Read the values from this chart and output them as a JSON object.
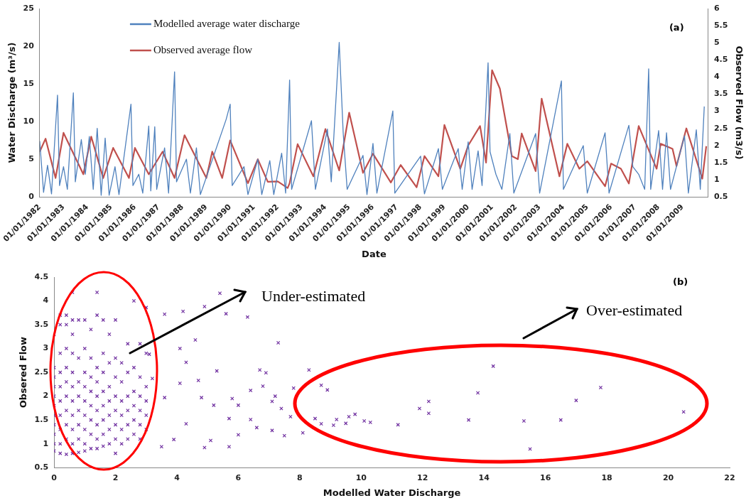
{
  "chart_data": [
    {
      "type": "line",
      "annotations": [
        "(a)"
      ],
      "xlabel": "Date",
      "ylabel": "Water Discharge (m³/s)",
      "y2label": "Observed Flow (m3/s)",
      "xlim": [
        "1982-01",
        "2010-02"
      ],
      "xticks": [
        {
          "value": "1982-01-01",
          "label": "01/01/1982"
        },
        {
          "value": "1983-01-01",
          "label": "01/01/1983"
        },
        {
          "value": "1984-01-01",
          "label": "01/01/1984"
        },
        {
          "value": "1985-01-01",
          "label": "01/01/1985"
        },
        {
          "value": "1986-01-01",
          "label": "01/01/1986"
        },
        {
          "value": "1987-01-01",
          "label": "01/01/1987"
        },
        {
          "value": "1988-01-01",
          "label": "01/01/1988"
        },
        {
          "value": "1989-01-01",
          "label": "01/01/1989"
        },
        {
          "value": "1990-01-01",
          "label": "01/01/1990"
        },
        {
          "value": "1991-01-01",
          "label": "01/01/1991"
        },
        {
          "value": "1992-01-01",
          "label": "01/01/1992"
        },
        {
          "value": "1993-01-01",
          "label": "01/01/1993"
        },
        {
          "value": "1994-01-01",
          "label": "01/01/1994"
        },
        {
          "value": "1995-01-01",
          "label": "01/01/1995"
        },
        {
          "value": "1996-01-01",
          "label": "01/01/1996"
        },
        {
          "value": "1997-01-01",
          "label": "01/01/1997"
        },
        {
          "value": "1998-01-01",
          "label": "01/01/1998"
        },
        {
          "value": "1999-01-01",
          "label": "01/01/1999"
        },
        {
          "value": "2000-01-01",
          "label": "01/01/2000"
        },
        {
          "value": "2001-01-01",
          "label": "01/01/2001"
        },
        {
          "value": "2002-01-01",
          "label": "01/01/2002"
        },
        {
          "value": "2003-01-01",
          "label": "01/01/2003"
        },
        {
          "value": "2004-01-01",
          "label": "01/01/2004"
        },
        {
          "value": "2005-01-01",
          "label": "01/01/2005"
        },
        {
          "value": "2006-01-01",
          "label": "01/01/2006"
        },
        {
          "value": "2007-01-01",
          "label": "01/01/2007"
        },
        {
          "value": "2008-01-01",
          "label": "01/01/2008"
        },
        {
          "value": "2009-01-01",
          "label": "01/01/2009"
        }
      ],
      "ylim": [
        0,
        25
      ],
      "yticks": [
        0,
        5,
        10,
        15,
        20,
        25
      ],
      "y2lim": [
        0.5,
        6
      ],
      "y2ticks": [
        0.5,
        1,
        1.5,
        2,
        2.5,
        3,
        3.5,
        4,
        4.5,
        5,
        5.5,
        6
      ],
      "grid": false,
      "legend": "top left",
      "marker": "none",
      "line_style": "solid",
      "series": [
        {
          "name": "Modelled average water discharge",
          "color": "#4f81bd",
          "x": [
            "1982-01",
            "1982-03",
            "1982-05",
            "1982-07",
            "1982-10",
            "1982-11",
            "1983-01",
            "1983-03",
            "1983-06",
            "1983-07",
            "1983-10",
            "1983-12",
            "1984-02",
            "1984-04",
            "1984-06",
            "1984-08",
            "1984-10",
            "1984-12",
            "1985-03",
            "1985-05",
            "1985-11",
            "1985-12",
            "1986-03",
            "1986-05",
            "1986-08",
            "1986-09",
            "1986-11",
            "1986-12",
            "1987-04",
            "1987-06",
            "1987-09",
            "1987-10",
            "1988-03",
            "1988-05",
            "1988-08",
            "1988-10",
            "1989-11",
            "1990-01",
            "1990-02",
            "1990-08",
            "1990-10",
            "1991-03",
            "1991-05",
            "1991-09",
            "1991-11",
            "1992-03",
            "1992-05",
            "1992-07",
            "1992-08",
            "1993-06",
            "1993-08",
            "1994-02",
            "1994-04",
            "1994-08",
            "1994-10",
            "1994-12",
            "1995-08",
            "1995-10",
            "1996-01",
            "1996-03",
            "1996-11",
            "1996-12",
            "1998-01",
            "1998-03",
            "1998-10",
            "1998-12",
            "1999-08",
            "1999-10",
            "2000-01",
            "2000-03",
            "2000-06",
            "2000-08",
            "2000-11",
            "2000-12",
            "2001-03",
            "2001-06",
            "2001-10",
            "2001-12",
            "2002-11",
            "2003-01",
            "2003-12",
            "2004-01",
            "2004-11",
            "2005-01",
            "2005-10",
            "2005-12",
            "2006-10",
            "2006-12",
            "2007-03",
            "2007-06",
            "2007-08",
            "2007-09",
            "2008-01",
            "2008-03",
            "2008-05",
            "2008-07",
            "2009-02",
            "2009-04",
            "2009-08",
            "2009-10",
            "2009-12"
          ],
          "values": [
            7.4,
            0.6,
            4.2,
            0.4,
            13.5,
            1.5,
            4.0,
            1.0,
            13.8,
            2.0,
            7.6,
            3.0,
            8.0,
            1.0,
            9.1,
            0.2,
            7.8,
            0.2,
            4.0,
            0.3,
            12.3,
            1.5,
            3.0,
            0.5,
            9.4,
            0.8,
            9.3,
            1.0,
            6.5,
            0.5,
            16.6,
            2.0,
            5.0,
            0.5,
            6.5,
            0.3,
            10.3,
            12.3,
            1.5,
            4.0,
            0.3,
            5.0,
            0.3,
            4.8,
            0.3,
            5.8,
            0.5,
            15.5,
            1.0,
            10.1,
            1.0,
            9.0,
            2.0,
            20.5,
            8.5,
            1.0,
            5.5,
            0.3,
            7.1,
            0.5,
            11.4,
            0.5,
            5.4,
            0.4,
            6.4,
            1.0,
            6.4,
            1.0,
            7.3,
            1.0,
            6.1,
            1.5,
            17.8,
            6.0,
            3.0,
            1.0,
            8.4,
            0.5,
            8.4,
            0.5,
            15.4,
            1.0,
            6.8,
            0.5,
            8.5,
            0.5,
            9.5,
            4.0,
            3.0,
            1.0,
            17.0,
            1.0,
            8.8,
            1.0,
            8.5,
            1.0,
            8.1,
            0.5,
            8.9,
            1.0,
            12.0
          ]
        },
        {
          "name": "Observed average flow",
          "color": "#c0504d",
          "axis": "y2",
          "x": [
            "1982-01",
            "1982-04",
            "1982-09",
            "1983-01",
            "1983-11",
            "1984-03",
            "1984-09",
            "1985-02",
            "1985-10",
            "1986-01",
            "1986-08",
            "1987-03",
            "1987-09",
            "1988-02",
            "1989-01",
            "1989-04",
            "1989-09",
            "1990-01",
            "1990-10",
            "1991-03",
            "1991-08",
            "1992-01",
            "1992-06",
            "1992-07",
            "1992-11",
            "1993-07",
            "1994-01",
            "1994-08",
            "1995-01",
            "1995-08",
            "1996-01",
            "1996-10",
            "1997-03",
            "1997-11",
            "1998-03",
            "1998-10",
            "1999-01",
            "1999-09",
            "2000-01",
            "2000-07",
            "2000-10",
            "2001-01",
            "2001-05",
            "2001-11",
            "2002-02",
            "2002-04",
            "2002-11",
            "2003-02",
            "2003-11",
            "2004-03",
            "2004-09",
            "2005-01",
            "2005-10",
            "2006-01",
            "2006-06",
            "2006-10",
            "2007-03",
            "2007-12",
            "2008-02",
            "2008-08",
            "2008-10",
            "2009-03",
            "2009-11",
            "2010-01"
          ],
          "values": [
            1.82,
            2.2,
            1.05,
            2.37,
            1.16,
            2.26,
            1.05,
            1.93,
            1.05,
            1.93,
            1.16,
            1.82,
            1.05,
            2.3,
            1.05,
            1.82,
            1.05,
            2.15,
            0.9,
            1.6,
            0.94,
            0.95,
            0.76,
            0.9,
            2.04,
            1.1,
            2.48,
            1.27,
            2.96,
            1.2,
            1.76,
            0.92,
            1.43,
            0.78,
            1.69,
            1.1,
            2.6,
            1.32,
            2.0,
            2.57,
            1.5,
            4.2,
            3.66,
            1.69,
            1.6,
            2.35,
            1.25,
            3.37,
            1.1,
            2.05,
            1.32,
            1.54,
            0.81,
            1.47,
            1.32,
            0.89,
            2.57,
            1.32,
            2.05,
            1.9,
            1.4,
            2.5,
            1.03,
            1.98
          ]
        }
      ]
    },
    {
      "type": "scatter",
      "annotations": [
        "(b)",
        "Under-estimated",
        "Over-estimated"
      ],
      "xlabel": "Modelled Water Discharge",
      "ylabel": "Obsered Flow",
      "xlim": [
        0,
        22
      ],
      "xticks": [
        0,
        2,
        4,
        6,
        8,
        10,
        12,
        14,
        16,
        18,
        20,
        22
      ],
      "ylim": [
        0.5,
        4.5
      ],
      "yticks": [
        0.5,
        1,
        1.5,
        2,
        2.5,
        3,
        3.5,
        4,
        4.5
      ],
      "grid": false,
      "legend": false,
      "marker": "cross",
      "series": [
        {
          "color": "#7030a0",
          "x": [
            0,
            0,
            0,
            0,
            0,
            0,
            0,
            0,
            0,
            0,
            0,
            0.2,
            0.2,
            0.2,
            0.2,
            0.2,
            0.2,
            0.2,
            0.2,
            0.2,
            0.2,
            0.4,
            0.4,
            0.4,
            0.4,
            0.4,
            0.4,
            0.4,
            0.4,
            0.4,
            0.4,
            0.6,
            0.6,
            0.6,
            0.6,
            0.6,
            0.6,
            0.6,
            0.6,
            0.6,
            0.6,
            0.6,
            0.8,
            0.8,
            0.8,
            0.8,
            0.8,
            0.8,
            0.8,
            0.8,
            1.0,
            1.0,
            1.0,
            1.0,
            1.0,
            1.0,
            1.0,
            1.0,
            1.0,
            1.2,
            1.2,
            1.2,
            1.2,
            1.2,
            1.2,
            1.2,
            1.2,
            1.4,
            1.4,
            1.4,
            1.4,
            1.4,
            1.4,
            1.4,
            1.4,
            1.4,
            1.6,
            1.6,
            1.6,
            1.6,
            1.6,
            1.6,
            1.6,
            1.6,
            1.8,
            1.8,
            1.8,
            1.8,
            1.8,
            1.8,
            1.8,
            2.0,
            2.0,
            2.0,
            2.0,
            2.0,
            2.0,
            2.0,
            2.0,
            2.2,
            2.2,
            2.2,
            2.2,
            2.2,
            2.2,
            2.4,
            2.4,
            2.4,
            2.4,
            2.4,
            2.4,
            2.6,
            2.6,
            2.6,
            2.6,
            2.6,
            2.6,
            2.8,
            2.8,
            2.8,
            2.8,
            2.8,
            2.8,
            3.0,
            3.0,
            3.0,
            3.0,
            3.0,
            3.0,
            5.4,
            6.3,
            5.6,
            4.9,
            4.2,
            3.6,
            7.3,
            4.1,
            4.6,
            4.3,
            6.7,
            6.9,
            6.8,
            6.4,
            7.8,
            8.3,
            7.2,
            7.1,
            7.4,
            7.7,
            7.5,
            8.1,
            7.1,
            5.7,
            4.9,
            5.1,
            6.0,
            6.6,
            6.4,
            5.7,
            5.2,
            4.8,
            5.8,
            5.3,
            4.7,
            6.0,
            4.3,
            3.9,
            3.5,
            3.6,
            4.1,
            3.2,
            3.1,
            14.3,
            17.8,
            13.8,
            17.0,
            12.2,
            11.9,
            12.2,
            20.5,
            13.5,
            15.3,
            16.5,
            15.5,
            11.2,
            10.1,
            10.3,
            9.8,
            9.6,
            9.5,
            9.2,
            9.1,
            8.7,
            8.9,
            8.5,
            8.7
          ],
          "values": [
            0.85,
            1.0,
            1.2,
            1.4,
            1.6,
            1.8,
            2.0,
            2.2,
            2.4,
            2.6,
            3.3,
            0.8,
            1.0,
            1.3,
            1.6,
            1.9,
            2.2,
            2.5,
            2.9,
            3.5,
            3.7,
            0.78,
            1.1,
            1.4,
            1.7,
            2.0,
            2.3,
            2.6,
            3.0,
            3.5,
            3.7,
            0.8,
            1.0,
            1.3,
            1.6,
            1.9,
            2.2,
            2.5,
            2.9,
            3.3,
            3.6,
            4.18,
            0.82,
            1.1,
            1.4,
            1.7,
            2.0,
            2.3,
            2.8,
            3.6,
            0.85,
            1.0,
            1.3,
            1.6,
            1.9,
            2.2,
            2.5,
            3.0,
            3.6,
            0.9,
            1.2,
            1.5,
            1.8,
            2.1,
            2.4,
            2.8,
            3.4,
            0.9,
            1.1,
            1.4,
            1.7,
            2.0,
            2.3,
            2.6,
            3.7,
            4.18,
            0.95,
            1.2,
            1.5,
            1.8,
            2.1,
            2.5,
            2.9,
            3.6,
            1.0,
            1.3,
            1.6,
            1.9,
            2.2,
            2.7,
            3.3,
            0.8,
            1.1,
            1.4,
            1.7,
            2.0,
            2.4,
            2.8,
            3.6,
            1.0,
            1.3,
            1.6,
            1.9,
            2.3,
            2.7,
            1.1,
            1.4,
            1.7,
            2.0,
            2.5,
            3.1,
            1.2,
            1.5,
            1.8,
            2.1,
            2.6,
            4.0,
            1.1,
            1.4,
            1.7,
            2.0,
            2.4,
            3.1,
            1.3,
            1.6,
            1.9,
            2.2,
            2.9,
            3.86,
            4.16,
            3.66,
            3.73,
            3.88,
            3.78,
            3.72,
            3.12,
            3.0,
            3.18,
            2.71,
            2.55,
            2.49,
            2.21,
            2.12,
            2.17,
            2.55,
            2.0,
            1.89,
            1.74,
            1.57,
            1.17,
            1.23,
            1.28,
            0.94,
            0.92,
            1.07,
            1.19,
            1.34,
            1.51,
            1.53,
            1.81,
            1.97,
            1.95,
            2.53,
            2.33,
            1.81,
            1.42,
            1.09,
            0.94,
            1.97,
            2.27,
            2.37,
            2.88,
            2.63,
            2.18,
            2.07,
            1.91,
            1.89,
            1.74,
            1.64,
            1.67,
            1.5,
            1.48,
            1.5,
            0.89,
            1.4,
            1.48,
            1.45,
            1.62,
            1.57,
            1.43,
            1.51,
            1.39,
            2.23,
            2.13,
            1.53,
            1.42
          ]
        }
      ]
    }
  ]
}
